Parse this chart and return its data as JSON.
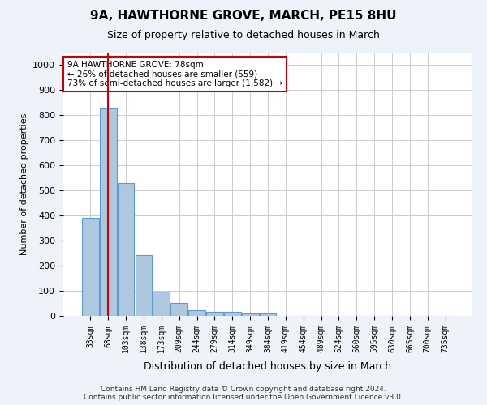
{
  "title": "9A, HAWTHORNE GROVE, MARCH, PE15 8HU",
  "subtitle": "Size of property relative to detached houses in March",
  "xlabel": "Distribution of detached houses by size in March",
  "ylabel": "Number of detached properties",
  "bar_values": [
    390,
    830,
    530,
    242,
    97,
    52,
    22,
    17,
    17,
    10,
    10,
    0,
    0,
    0,
    0,
    0,
    0,
    0,
    0,
    0,
    0
  ],
  "bar_labels": [
    "33sqm",
    "68sqm",
    "103sqm",
    "138sqm",
    "173sqm",
    "209sqm",
    "244sqm",
    "279sqm",
    "314sqm",
    "349sqm",
    "384sqm",
    "419sqm",
    "454sqm",
    "489sqm",
    "524sqm",
    "560sqm",
    "595sqm",
    "630sqm",
    "665sqm",
    "700sqm",
    "735sqm"
  ],
  "ylim": [
    0,
    1050
  ],
  "yticks": [
    0,
    100,
    200,
    300,
    400,
    500,
    600,
    700,
    800,
    900,
    1000
  ],
  "bar_color": "#aec8e0",
  "bar_edge_color": "#5b9bd5",
  "vline_x": 1,
  "vline_color": "#cc0000",
  "annotation_text": "9A HAWTHORNE GROVE: 78sqm\n← 26% of detached houses are smaller (559)\n73% of semi-detached houses are larger (1,582) →",
  "annotation_box_color": "#cc0000",
  "footer_line1": "Contains HM Land Registry data © Crown copyright and database right 2024.",
  "footer_line2": "Contains public sector information licensed under the Open Government Licence v3.0.",
  "bg_color": "#eef2fa",
  "plot_bg_color": "#ffffff",
  "grid_color": "#cccccc"
}
